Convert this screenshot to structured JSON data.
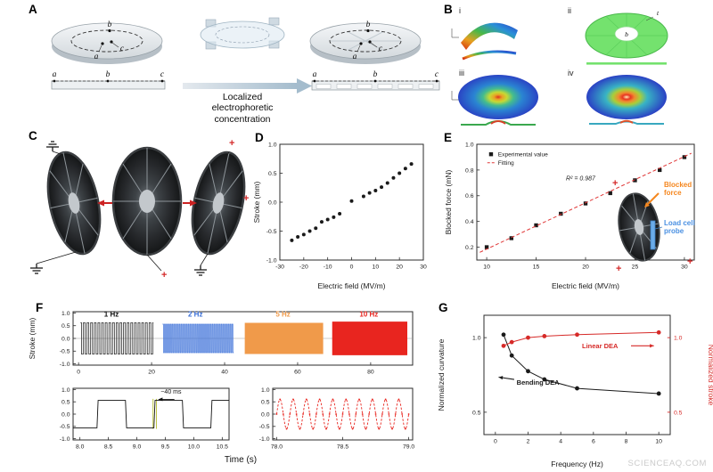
{
  "meta": {
    "watermark": "SCIENCEAQ.COM"
  },
  "panels": {
    "A": {
      "label": "A",
      "pt_a": "a",
      "pt_b": "b",
      "pt_c": "c",
      "caption": "Localized electrophoretic concentration"
    },
    "B": {
      "label": "B",
      "sub_i": "i",
      "sub_ii": "ii",
      "sub_iii": "iii",
      "sub_iv": "iv",
      "pt_b": "b",
      "pt_t": "t"
    },
    "C": {
      "label": "C",
      "plus": "+"
    },
    "D": {
      "label": "D"
    },
    "E": {
      "label": "E",
      "plus": "+",
      "inset": {
        "blocked_force": "Blocked force",
        "load_cell_probe": "Load cell probe"
      }
    },
    "F": {
      "label": "F",
      "xlabel": "Time (s)"
    },
    "G": {
      "label": "G"
    }
  },
  "chart_data": [
    {
      "id": "d",
      "type": "scatter",
      "xlabel": "Electric field (MV/m)",
      "ylabel": "Stroke (mm)",
      "xlim": [
        -30,
        30
      ],
      "ylim": [
        -1,
        1
      ],
      "xticks": {
        "v": [
          -30,
          -20,
          -10,
          0,
          10,
          20,
          30
        ],
        "l": [
          "-30",
          "-20",
          "-10",
          "0",
          "10",
          "20",
          "30"
        ]
      },
      "yticks": {
        "v": [
          -1,
          -0.5,
          0,
          0.5,
          1
        ],
        "l": [
          "-1.0",
          "-0.5",
          "0.0",
          "0.5",
          "1.0"
        ]
      },
      "margins": {
        "l": 34,
        "r": 10,
        "t": 14,
        "b": 38
      },
      "series": [
        {
          "name": "stroke",
          "type": "scatter",
          "marker": "circle",
          "color": "#1a1a1a",
          "size": 2,
          "x": [
            -25,
            -22.5,
            -20,
            -17.5,
            -15,
            -12.5,
            -10,
            -7.5,
            -5,
            0,
            5,
            7.5,
            10,
            12.5,
            15,
            17.5,
            20,
            22.5,
            25
          ],
          "y": [
            -0.66,
            -0.6,
            -0.56,
            -0.5,
            -0.45,
            -0.34,
            -0.3,
            -0.26,
            -0.2,
            0.02,
            0.1,
            0.16,
            0.2,
            0.26,
            0.33,
            0.42,
            0.5,
            0.58,
            0.66
          ]
        }
      ]
    },
    {
      "id": "e",
      "type": "scatter",
      "xlabel": "Electric field (MV/m)",
      "ylabel": "Blocked force (mN)",
      "xlim": [
        9,
        31
      ],
      "ylim": [
        0.1,
        1.0
      ],
      "xticks": {
        "v": [
          10,
          15,
          20,
          25,
          30
        ],
        "l": [
          "10",
          "15",
          "20",
          "25",
          "30"
        ]
      },
      "yticks": {
        "v": [
          0.2,
          0.4,
          0.6,
          0.8,
          1.0
        ],
        "l": [
          "0.2",
          "0.4",
          "0.6",
          "0.8",
          "1.0"
        ]
      },
      "margins": {
        "l": 40,
        "r": 16,
        "t": 14,
        "b": 38
      },
      "series": [
        {
          "name": "Experimental value",
          "type": "scatter",
          "marker": "square",
          "color": "#1a1a1a",
          "size": 2.2,
          "x": [
            10,
            12.5,
            15,
            17.5,
            20,
            22.5,
            25,
            27.5,
            30
          ],
          "y": [
            0.2,
            0.27,
            0.37,
            0.46,
            0.54,
            0.62,
            0.72,
            0.8,
            0.9
          ]
        },
        {
          "name": "Fitting",
          "type": "line",
          "dash": "4 2.5",
          "color": "#e03636",
          "lw": 1,
          "x": [
            9.3,
            30.7
          ],
          "y": [
            0.16,
            0.93
          ]
        }
      ],
      "legend": {
        "x": 0.04,
        "y": 0.04,
        "items": [
          {
            "label": "Experimental value",
            "marker": "square",
            "color": "#1a1a1a"
          },
          {
            "label": "Fitting",
            "marker": "dashline",
            "color": "#e03636"
          }
        ]
      },
      "annotations": [
        {
          "text": "R² = 0.987",
          "x": 19.5,
          "y": 0.72,
          "size": 7,
          "color": "#222",
          "anchor": "middle",
          "italic": true
        }
      ]
    },
    {
      "id": "g",
      "type": "line+scatter",
      "xlabel": "Frequency (Hz)",
      "ylabel": "Normalized curvature",
      "y2label": "Normalized stroke",
      "y2color": "#d62a28",
      "xlim": [
        -0.7,
        10.7
      ],
      "ylim": [
        0.35,
        1.15
      ],
      "xticks": {
        "v": [
          0,
          2,
          4,
          6,
          8,
          10
        ],
        "l": [
          "0",
          "2",
          "4",
          "6",
          "8",
          "10"
        ]
      },
      "yticks": {
        "v": [
          0.5,
          1.0
        ],
        "l": [
          "0.5",
          "1.0"
        ]
      },
      "y2ticks": {
        "v": [
          0.5,
          1.0
        ],
        "l": [
          "0.5",
          "1.0"
        ]
      },
      "margins": {
        "l": 56,
        "r": 48,
        "t": 16,
        "b": 42
      },
      "series": [
        {
          "name": "Bending DEA",
          "type": "both",
          "marker": "circle",
          "color": "#1a1a1a",
          "size": 2.4,
          "lw": 1,
          "x": [
            0.5,
            1,
            2,
            3,
            5,
            10
          ],
          "y": [
            1.02,
            0.88,
            0.775,
            0.72,
            0.66,
            0.625
          ]
        },
        {
          "name": "Linear DEA",
          "type": "both",
          "marker": "circle",
          "color": "#d62a28",
          "size": 2.4,
          "lw": 1,
          "x": [
            0.5,
            1,
            2,
            3,
            5,
            10
          ],
          "y": [
            0.945,
            0.97,
            1.0,
            1.01,
            1.02,
            1.035
          ]
        }
      ],
      "annotations": [
        {
          "text": "Linear DEA",
          "x": 5.3,
          "y": 0.93,
          "size": 7.5,
          "color": "#d62a28",
          "anchor": "start",
          "bold": true
        },
        {
          "text": "Bending DEA",
          "x": 1.3,
          "y": 0.685,
          "size": 7.5,
          "color": "#1a1a1a",
          "anchor": "start",
          "bold": true
        }
      ],
      "arrows": [
        {
          "x1": 8.3,
          "y1": 0.945,
          "x2": 9.7,
          "y2": 0.945,
          "color": "#d62a28",
          "w": 1.1
        },
        {
          "x1": 1.15,
          "y1": 0.72,
          "x2": 0.2,
          "y2": 0.735,
          "color": "#1a1a1a",
          "w": 1.1
        }
      ]
    },
    {
      "id": "fmain",
      "type": "line",
      "ylabel": "Stroke (mm)",
      "xlim": [
        -1.5,
        91.5
      ],
      "ylim": [
        -1.05,
        1.05
      ],
      "xticks": {
        "v": [
          0,
          20,
          40,
          60,
          80
        ],
        "l": [
          "0",
          "20",
          "40",
          "60",
          "80"
        ]
      },
      "yticks": {
        "v": [
          -1,
          -0.5,
          0,
          0.5,
          1
        ],
        "l": [
          "-1.0",
          "-0.5",
          "0.0",
          "0.5",
          "1.0"
        ]
      },
      "margins": {
        "l": 54,
        "r": 10,
        "t": 12,
        "b": 20
      },
      "lines": [
        {
          "x1": -1.5,
          "y1": 0,
          "x2": 91.5,
          "y2": 0,
          "color": "#999999",
          "w": 0.5
        }
      ],
      "series": [
        {
          "name": "1 Hz",
          "gen": "square",
          "freq": 1,
          "amp": 0.62,
          "t0": 0.5,
          "t1": 20.5,
          "phase": 0.3,
          "color": "#111111",
          "lw": 0.7
        },
        {
          "name": "2 Hz",
          "gen": "square",
          "freq": 2,
          "amp": 0.56,
          "t0": 23,
          "t1": 42.5,
          "phase": 0,
          "color": "#3a6fd8",
          "lw": 0.7
        },
        {
          "name": "5 Hz",
          "gen": "square",
          "freq": 5,
          "amp": 0.6,
          "t0": 45.5,
          "t1": 67,
          "phase": 0,
          "color": "#f09a4a",
          "lw": 0.7
        },
        {
          "name": "10 Hz",
          "gen": "square",
          "freq": 10,
          "amp": 0.65,
          "t0": 69.5,
          "t1": 90,
          "phase": 0,
          "color": "#e8251f",
          "lw": 0.7
        }
      ],
      "annotations": [
        {
          "text": "1 Hz",
          "x": 9,
          "y": 0.85,
          "size": 8,
          "color": "#111111",
          "anchor": "middle",
          "bold": true
        },
        {
          "text": "2 Hz",
          "x": 32,
          "y": 0.85,
          "size": 8,
          "color": "#3a6fd8",
          "anchor": "middle",
          "bold": true
        },
        {
          "text": "5 Hz",
          "x": 56,
          "y": 0.85,
          "size": 8,
          "color": "#f09a4a",
          "anchor": "middle",
          "bold": true
        },
        {
          "text": "10 Hz",
          "x": 79.5,
          "y": 0.85,
          "size": 8,
          "color": "#e8251f",
          "anchor": "middle",
          "bold": true
        }
      ]
    },
    {
      "id": "fins1",
      "type": "line",
      "xlim": [
        7.88,
        10.62
      ],
      "ylim": [
        -1.05,
        1.05
      ],
      "xticks": {
        "v": [
          8.0,
          8.5,
          9.0,
          9.5,
          10.0,
          10.5
        ],
        "l": [
          "8.0",
          "8.5",
          "9.0",
          "9.5",
          "10.0",
          "10.5"
        ]
      },
      "yticks": {
        "v": [
          -1,
          -0.5,
          0,
          0.5,
          1
        ],
        "l": [
          "-1.0",
          "-0.5",
          "0.0",
          "0.5",
          "1.0"
        ]
      },
      "margins": {
        "l": 54,
        "r": 6,
        "t": 8,
        "b": 20
      },
      "lines": [
        {
          "x1": 9.285,
          "y1": -0.6,
          "x2": 9.285,
          "y2": 0.62,
          "color": "#b5bd2e",
          "w": 0.9
        },
        {
          "x1": 9.345,
          "y1": -0.6,
          "x2": 9.345,
          "y2": 0.62,
          "color": "#b5bd2e",
          "w": 0.9
        }
      ],
      "series": [
        {
          "name": "1 Hz zoom",
          "gen": "square",
          "freq": 1,
          "amp": 0.56,
          "t0": 7.88,
          "t1": 10.62,
          "phase": 0.3,
          "color": "#111111",
          "lw": 0.9
        }
      ],
      "annotations": [
        {
          "text": "~40 ms",
          "x": 9.42,
          "y": 0.84,
          "size": 7,
          "color": "#111111",
          "anchor": "start"
        }
      ],
      "arrows": [
        {
          "x1": 9.66,
          "y1": 0.6,
          "x2": 9.38,
          "y2": 0.6,
          "color": "#111111",
          "w": 0.8
        }
      ]
    },
    {
      "id": "fins2",
      "type": "line",
      "xlim": [
        77.97,
        79.03
      ],
      "ylim": [
        -1.05,
        1.05
      ],
      "xticks": {
        "v": [
          78.0,
          78.5,
          79.0
        ],
        "l": [
          "78.0",
          "78.5",
          "79.0"
        ]
      },
      "yticks": {
        "v": [
          -1,
          -0.5,
          0,
          0.5,
          1
        ],
        "l": [
          "-1.0",
          "-0.5",
          "0.0",
          "0.5",
          "1.0"
        ]
      },
      "margins": {
        "l": 38,
        "r": 10,
        "t": 8,
        "b": 20
      },
      "series": [
        {
          "name": "10 Hz zoom",
          "gen": "sine",
          "freq": 10,
          "amp": 0.6,
          "t0": 78,
          "t1": 79,
          "phase": 78,
          "color": "#e8251f",
          "lw": 0.9,
          "dash": "2.5 1.8",
          "marker": "circle",
          "size": 0.9,
          "markevery": 6
        }
      ]
    }
  ]
}
